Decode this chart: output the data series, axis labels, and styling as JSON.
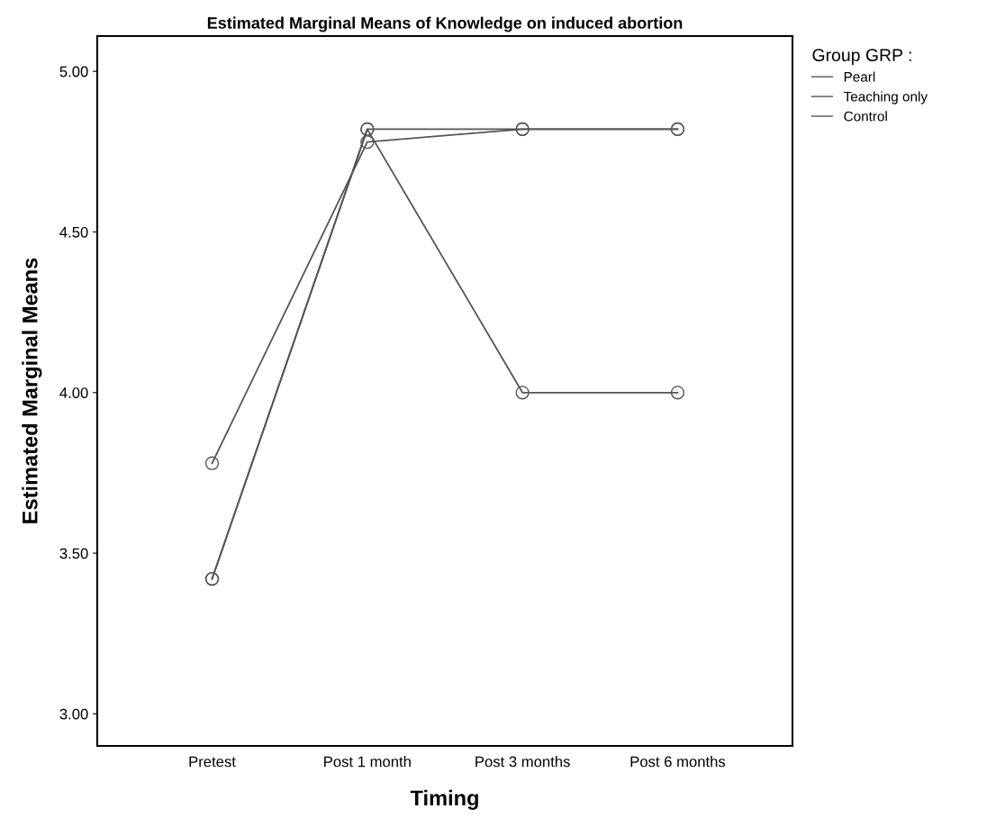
{
  "chart_data": {
    "type": "line",
    "title": "Estimated Marginal Means of Knowledge on induced abortion",
    "xlabel": "Timing",
    "ylabel": "Estimated Marginal Means",
    "legend_title": "Group GRP :",
    "categories": [
      "Pretest",
      "Post 1 month",
      "Post 3 months",
      "Post 6 months"
    ],
    "series": [
      {
        "name": "Pearl",
        "color": "#555555",
        "values": [
          3.78,
          4.78,
          4.82,
          4.82
        ]
      },
      {
        "name": "Teaching only",
        "color": "#555555",
        "values": [
          3.42,
          4.82,
          4.82,
          4.82
        ]
      },
      {
        "name": "Control",
        "color": "#555555",
        "values": [
          3.42,
          4.82,
          4.0,
          4.0
        ]
      }
    ],
    "ylim": [
      2.9,
      5.11
    ],
    "yticks": [
      {
        "value": 3,
        "label": "3.00"
      },
      {
        "value": 3.5,
        "label": "3.50"
      },
      {
        "value": 4,
        "label": "4.00"
      },
      {
        "value": 4.5,
        "label": "4.50"
      },
      {
        "value": 5,
        "label": "5.00"
      }
    ],
    "grid": false,
    "legend": "top right",
    "marker": "circle",
    "line_style": "solid"
  }
}
